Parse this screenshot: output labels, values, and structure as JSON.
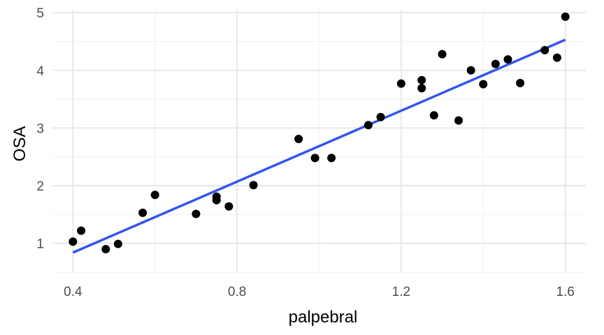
{
  "chart_data": {
    "type": "scatter",
    "title": "",
    "xlabel": "palpebral",
    "ylabel": "OSA",
    "xlim": [
      0.35,
      1.65
    ],
    "ylim": [
      0.5,
      5.05
    ],
    "x_ticks": [
      0.4,
      0.8,
      1.2,
      1.6
    ],
    "x_tick_labels": [
      "0.4",
      "0.8",
      "1.2",
      "1.6"
    ],
    "y_ticks": [
      1,
      2,
      3,
      4,
      5
    ],
    "y_tick_labels": [
      "1",
      "2",
      "3",
      "4",
      "5"
    ],
    "grid": true,
    "points_color": "#000000",
    "points": [
      {
        "x": 0.4,
        "y": 1.03
      },
      {
        "x": 0.42,
        "y": 1.22
      },
      {
        "x": 0.48,
        "y": 0.9
      },
      {
        "x": 0.51,
        "y": 0.99
      },
      {
        "x": 0.57,
        "y": 1.53
      },
      {
        "x": 0.6,
        "y": 1.84
      },
      {
        "x": 0.7,
        "y": 1.51
      },
      {
        "x": 0.75,
        "y": 1.81
      },
      {
        "x": 0.75,
        "y": 1.75
      },
      {
        "x": 0.78,
        "y": 1.64
      },
      {
        "x": 0.84,
        "y": 2.01
      },
      {
        "x": 0.95,
        "y": 2.81
      },
      {
        "x": 0.99,
        "y": 2.48
      },
      {
        "x": 1.03,
        "y": 2.48
      },
      {
        "x": 1.12,
        "y": 3.05
      },
      {
        "x": 1.15,
        "y": 3.19
      },
      {
        "x": 1.2,
        "y": 3.77
      },
      {
        "x": 1.25,
        "y": 3.83
      },
      {
        "x": 1.25,
        "y": 3.69
      },
      {
        "x": 1.28,
        "y": 3.22
      },
      {
        "x": 1.3,
        "y": 4.28
      },
      {
        "x": 1.34,
        "y": 3.13
      },
      {
        "x": 1.37,
        "y": 4.0
      },
      {
        "x": 1.4,
        "y": 3.76
      },
      {
        "x": 1.43,
        "y": 4.11
      },
      {
        "x": 1.46,
        "y": 4.19
      },
      {
        "x": 1.49,
        "y": 3.78
      },
      {
        "x": 1.55,
        "y": 4.35
      },
      {
        "x": 1.58,
        "y": 4.22
      },
      {
        "x": 1.6,
        "y": 4.93
      }
    ],
    "trend_line": {
      "color": "#3355ee",
      "x": [
        0.4,
        1.6
      ],
      "y": [
        0.84,
        4.53
      ]
    }
  }
}
